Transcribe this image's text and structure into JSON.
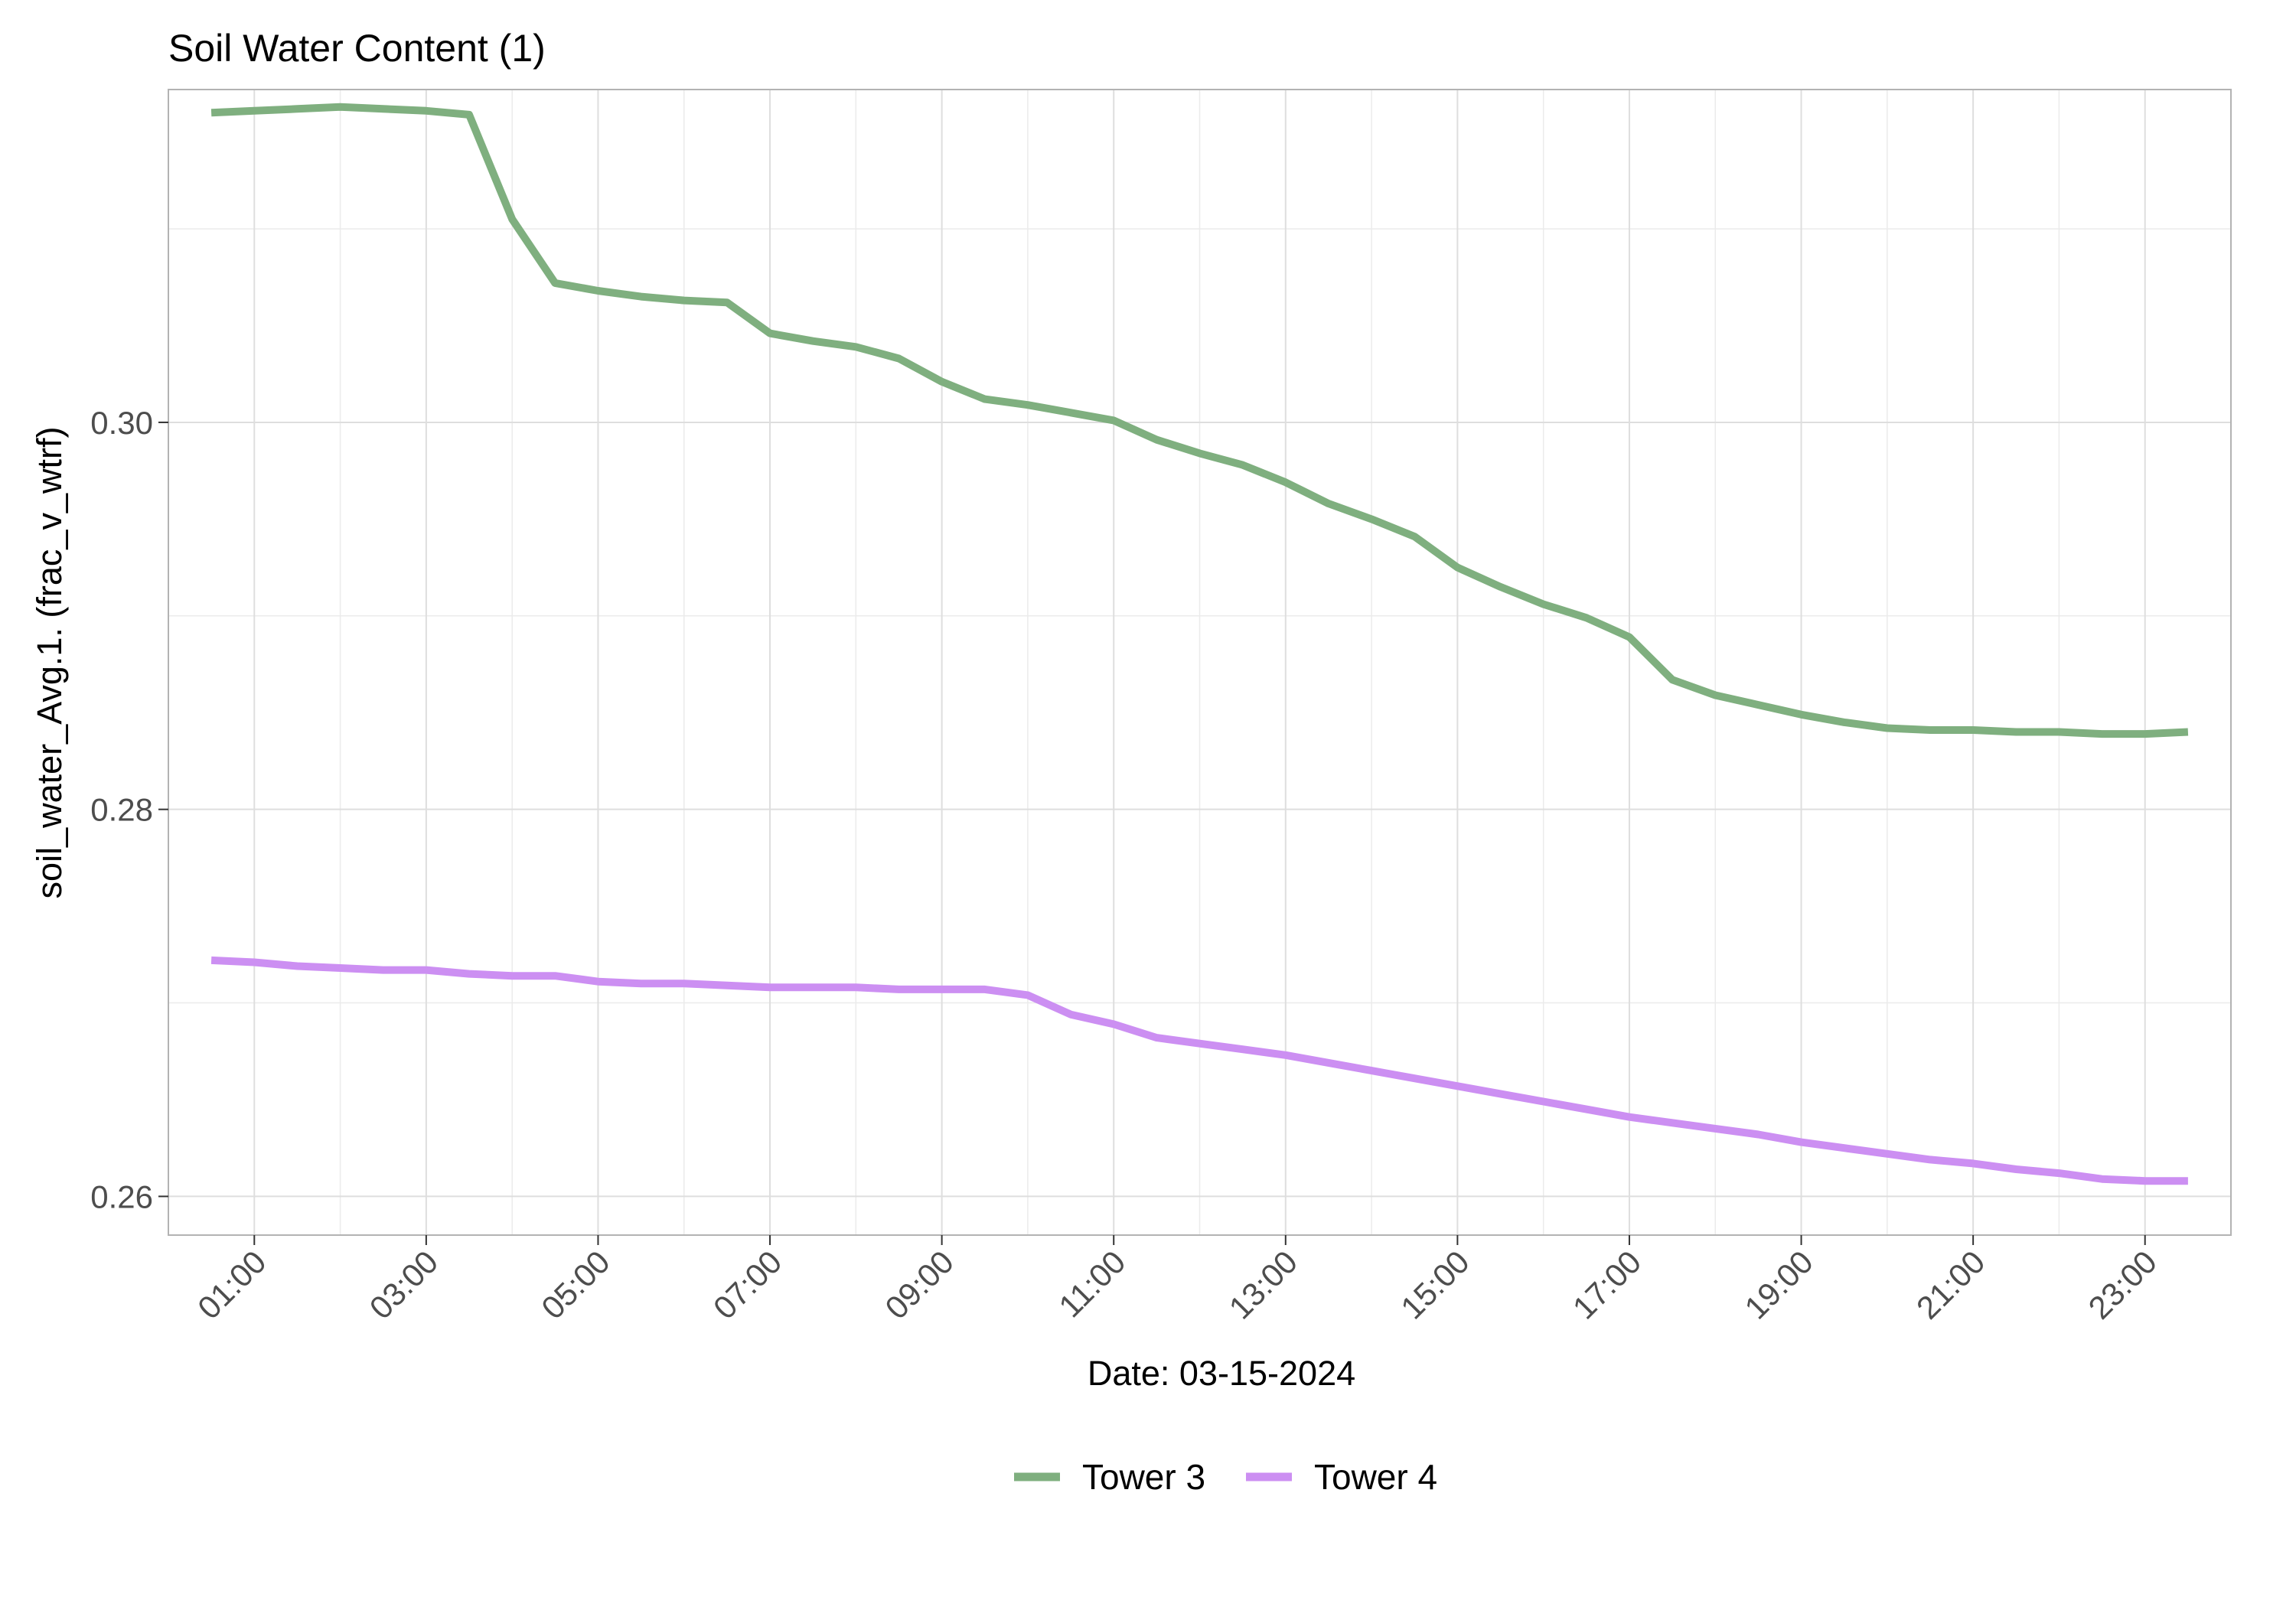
{
  "chart_data": {
    "type": "line",
    "title": "Soil Water Content (1)",
    "xlabel": "Date: 03-15-2024",
    "ylabel": "soil_water_Avg.1. (frac_v_wtrf)",
    "x_ticks": [
      "01:00",
      "03:00",
      "05:00",
      "07:00",
      "09:00",
      "11:00",
      "13:00",
      "15:00",
      "17:00",
      "19:00",
      "21:00",
      "23:00"
    ],
    "y_ticks": [
      "0.26",
      "0.28",
      "0.30"
    ],
    "xlim": [
      "00:00",
      "24:00"
    ],
    "ylim": [
      0.258,
      0.3172
    ],
    "grid": true,
    "legend_position": "bottom",
    "x": [
      "00:30",
      "01:00",
      "01:30",
      "02:00",
      "02:30",
      "03:00",
      "03:30",
      "04:00",
      "04:30",
      "05:00",
      "05:30",
      "06:00",
      "06:30",
      "07:00",
      "07:30",
      "08:00",
      "08:30",
      "09:00",
      "09:30",
      "10:00",
      "10:30",
      "11:00",
      "11:30",
      "12:00",
      "12:30",
      "13:00",
      "13:30",
      "14:00",
      "14:30",
      "15:00",
      "15:30",
      "16:00",
      "16:30",
      "17:00",
      "17:30",
      "18:00",
      "18:30",
      "19:00",
      "19:30",
      "20:00",
      "20:30",
      "21:00",
      "21:30",
      "22:00",
      "22:30",
      "23:00",
      "23:30"
    ],
    "series": [
      {
        "name": "Tower 3",
        "color": "#7FAF7F",
        "values": [
          0.316,
          0.3161,
          0.3162,
          0.3163,
          0.3162,
          0.3161,
          0.3159,
          0.3105,
          0.3072,
          0.3068,
          0.3065,
          0.3063,
          0.3062,
          0.3046,
          0.3042,
          0.3039,
          0.3033,
          0.3021,
          0.3012,
          0.3009,
          0.3005,
          0.3001,
          0.2991,
          0.2984,
          0.2978,
          0.2969,
          0.2958,
          0.295,
          0.2941,
          0.2925,
          0.2915,
          0.2906,
          0.2899,
          0.2889,
          0.2867,
          0.2859,
          0.2854,
          0.2849,
          0.2845,
          0.2842,
          0.2841,
          0.2841,
          0.284,
          0.284,
          0.2839,
          0.2839,
          0.284
        ]
      },
      {
        "name": "Tower 4",
        "color": "#CC8FF2",
        "values": [
          0.2722,
          0.2721,
          0.2719,
          0.2718,
          0.2717,
          0.2717,
          0.2715,
          0.2714,
          0.2714,
          0.2711,
          0.271,
          0.271,
          0.2709,
          0.2708,
          0.2708,
          0.2708,
          0.2707,
          0.2707,
          0.2707,
          0.2704,
          0.2694,
          0.2689,
          0.2682,
          0.2679,
          0.2676,
          0.2673,
          0.2669,
          0.2665,
          0.2661,
          0.2657,
          0.2653,
          0.2649,
          0.2645,
          0.2641,
          0.2638,
          0.2635,
          0.2632,
          0.2628,
          0.2625,
          0.2622,
          0.2619,
          0.2617,
          0.2614,
          0.2612,
          0.2609,
          0.2608,
          0.2608
        ]
      }
    ]
  }
}
